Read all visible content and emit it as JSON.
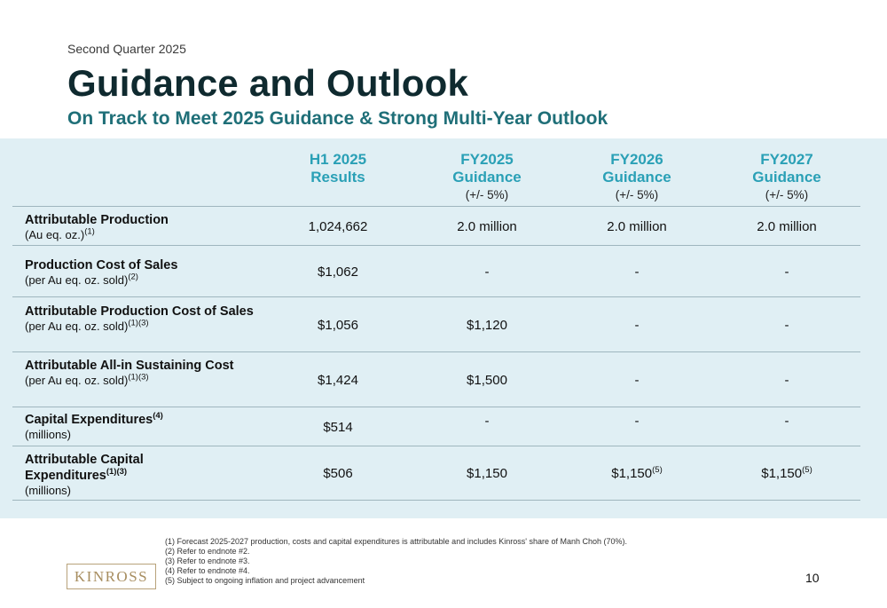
{
  "kicker": "Second Quarter 2025",
  "title": "Guidance and Outlook",
  "subtitle": "On Track to Meet 2025 Guidance & Strong Multi-Year Outlook",
  "columns": [
    {
      "line1": "H1 2025",
      "line2": "Results",
      "line3": ""
    },
    {
      "line1": "FY2025",
      "line2": "Guidance",
      "line3": "(+/- 5%)"
    },
    {
      "line1": "FY2026",
      "line2": "Guidance",
      "line3": "(+/- 5%)"
    },
    {
      "line1": "FY2027",
      "line2": "Guidance",
      "line3": "(+/- 5%)"
    }
  ],
  "rows": [
    {
      "label": "Attributable Production",
      "label_sup": "",
      "sublabel": "(Au eq. oz.)",
      "sublabel_sup": "(1)",
      "values": [
        "1,024,662",
        "2.0 million",
        "2.0 million",
        "2.0 million"
      ],
      "value_sups": [
        "",
        "",
        "",
        ""
      ]
    },
    {
      "label": "Production Cost of Sales",
      "label_sup": "",
      "sublabel": "(per Au eq. oz. sold)",
      "sublabel_sup": "(2)",
      "values": [
        "$1,062",
        "-",
        "-",
        "-"
      ],
      "value_sups": [
        "",
        "",
        "",
        ""
      ]
    },
    {
      "label": "Attributable Production Cost of Sales",
      "label_sup": "",
      "sublabel": "(per Au eq. oz. sold)",
      "sublabel_sup": "(1)(3)",
      "values": [
        "$1,056",
        "$1,120",
        "-",
        "-"
      ],
      "value_sups": [
        "",
        "",
        "",
        ""
      ]
    },
    {
      "label": "Attributable All-in Sustaining Cost",
      "label_sup": "",
      "sublabel": "(per Au eq. oz. sold)",
      "sublabel_sup": "(1)(3)",
      "values": [
        "$1,424",
        "$1,500",
        "-",
        "-"
      ],
      "value_sups": [
        "",
        "",
        "",
        ""
      ]
    },
    {
      "label": "Capital Expenditures",
      "label_sup": "(4)",
      "sublabel": "(millions)",
      "sublabel_sup": "",
      "values": [
        "$514",
        "-",
        "-",
        "-"
      ],
      "value_sups": [
        "",
        "",
        "",
        ""
      ]
    },
    {
      "label": "Attributable Capital Expenditures",
      "label_sup": "(1)(3)",
      "sublabel": "(millions)",
      "sublabel_sup": "",
      "values": [
        "$506",
        "$1,150",
        "$1,150",
        "$1,150"
      ],
      "value_sups": [
        "",
        "",
        "(5)",
        "(5)"
      ]
    }
  ],
  "footnotes": [
    "(1) Forecast 2025-2027 production, costs and capital expenditures is attributable and includes Kinross' share of Manh Choh (70%).",
    "(2) Refer to endnote #2.",
    "(3) Refer to endnote #3.",
    "(4) Refer to endnote #4.",
    "(5) Subject to ongoing inflation and project advancement"
  ],
  "page_number": "10",
  "logo_text": "KINROSS"
}
